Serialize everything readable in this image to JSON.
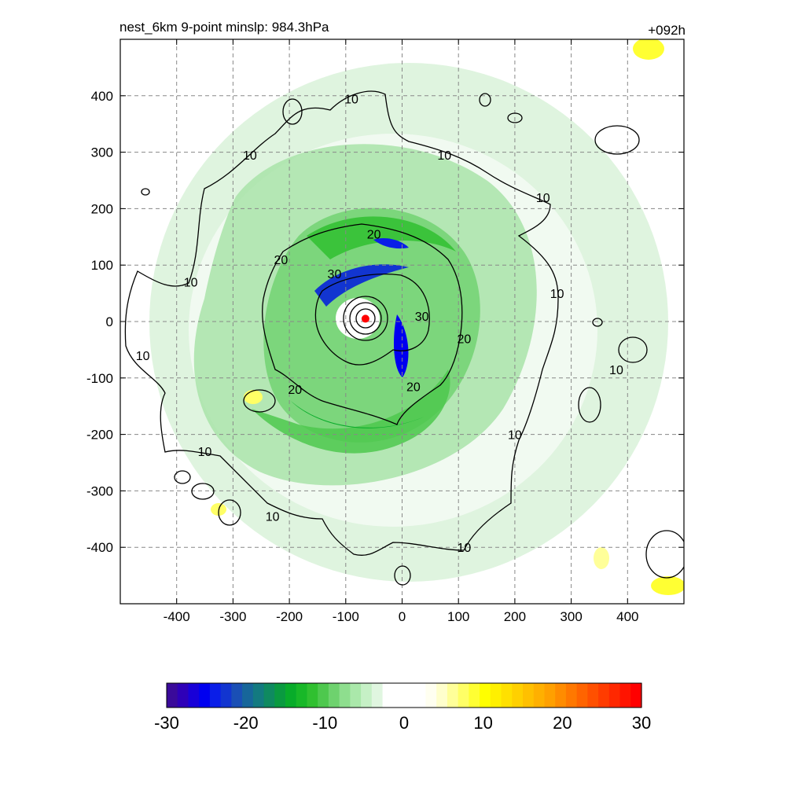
{
  "header": {
    "title": "nest_6km  9-point minslp: 984.3hPa",
    "time_label": "+092h"
  },
  "chart_data": {
    "type": "heatmap",
    "title": "nest_6km  9-point minslp: 984.3hPa",
    "xlabel": "",
    "ylabel": "",
    "xlim": [
      -500,
      500
    ],
    "ylim": [
      -500,
      500
    ],
    "grid": true,
    "x_ticks": [
      -400,
      -300,
      -200,
      -100,
      0,
      100,
      200,
      300,
      400
    ],
    "y_ticks": [
      -400,
      -300,
      -200,
      -100,
      0,
      100,
      200,
      300,
      400
    ],
    "x_tick_labels": [
      "-400",
      "-300",
      "-200",
      "-100",
      "0",
      "100",
      "200",
      "300",
      "400"
    ],
    "y_tick_labels": [
      "-400",
      "-300",
      "-200",
      "-100",
      "0",
      "100",
      "200",
      "300",
      "400"
    ],
    "storm_center": {
      "x": -65,
      "y": 5,
      "color": "#ff0000"
    },
    "contour_levels": [
      10,
      20,
      30
    ],
    "contour_labels": [
      {
        "text": "10",
        "x": -90,
        "y": 395
      },
      {
        "text": "10",
        "x": -270,
        "y": 295
      },
      {
        "text": "10",
        "x": 75,
        "y": 295
      },
      {
        "text": "10",
        "x": 250,
        "y": 220
      },
      {
        "text": "10",
        "x": -375,
        "y": 70
      },
      {
        "text": "10",
        "x": 275,
        "y": 50
      },
      {
        "text": "10",
        "x": -460,
        "y": -60
      },
      {
        "text": "10",
        "x": 380,
        "y": -85
      },
      {
        "text": "10",
        "x": -350,
        "y": -230
      },
      {
        "text": "10",
        "x": 200,
        "y": -200
      },
      {
        "text": "10",
        "x": -230,
        "y": -345
      },
      {
        "text": "10",
        "x": 110,
        "y": -400
      },
      {
        "text": "20",
        "x": -50,
        "y": 155
      },
      {
        "text": "20",
        "x": -215,
        "y": 110
      },
      {
        "text": "20",
        "x": 110,
        "y": -30
      },
      {
        "text": "20",
        "x": -190,
        "y": -120
      },
      {
        "text": "20",
        "x": 20,
        "y": -115
      },
      {
        "text": "30",
        "x": -120,
        "y": 85
      },
      {
        "text": "30",
        "x": 35,
        "y": 10
      }
    ],
    "colorbar": {
      "min": -30,
      "max": 30,
      "tick_values": [
        -30,
        -20,
        -10,
        0,
        10,
        20,
        30
      ],
      "tick_labels": [
        "-30",
        "-20",
        "-10",
        "0",
        "10",
        "20",
        "30"
      ],
      "colors": [
        "#3a0a9a",
        "#2e00b8",
        "#1800d8",
        "#0000f0",
        "#0a1ee8",
        "#1235d0",
        "#1a4fb5",
        "#17669a",
        "#137a80",
        "#0f8a60",
        "#0a9a40",
        "#08ac2a",
        "#18b828",
        "#30c030",
        "#4ec84e",
        "#6ed26e",
        "#8ede8e",
        "#aae8aa",
        "#c6f0c6",
        "#e0f6e0",
        "#ffffff",
        "#ffffff",
        "#ffffff",
        "#ffffff",
        "#fffff0",
        "#ffffcc",
        "#ffff99",
        "#ffff66",
        "#ffff33",
        "#ffff00",
        "#fff000",
        "#ffe000",
        "#ffd000",
        "#ffc000",
        "#ffb000",
        "#ffa000",
        "#ff8c00",
        "#ff7800",
        "#ff6400",
        "#ff5000",
        "#ff3c00",
        "#ff2800",
        "#ff1400",
        "#ff0000"
      ]
    }
  }
}
